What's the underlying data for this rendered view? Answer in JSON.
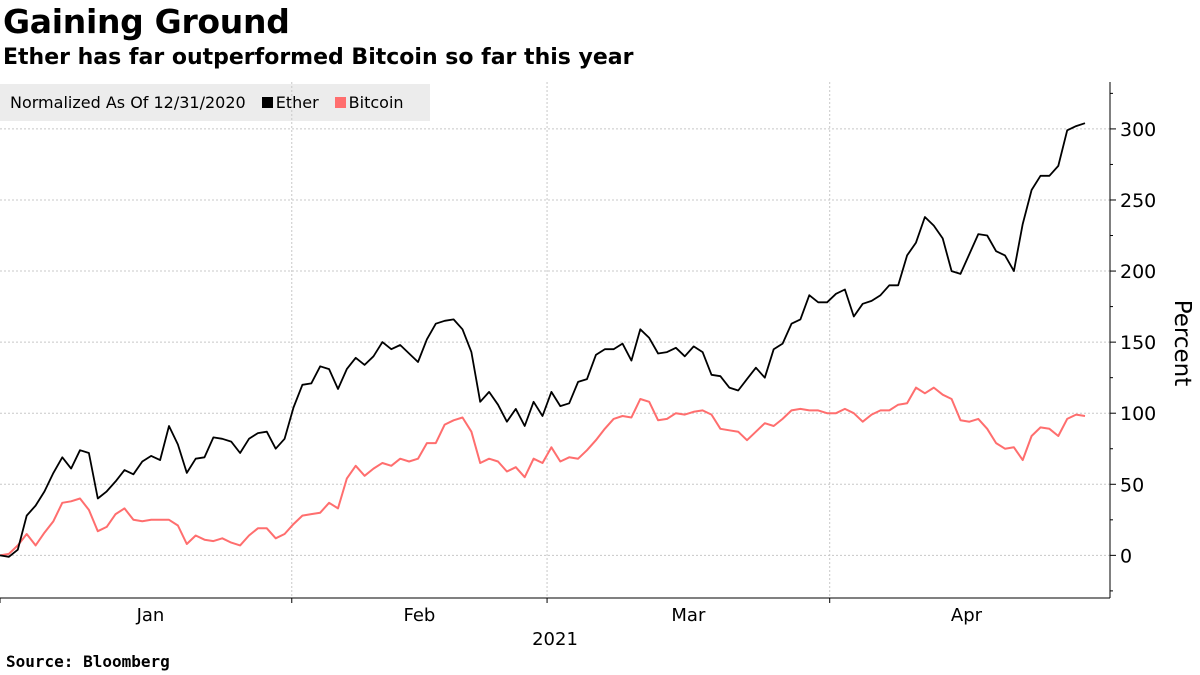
{
  "header": {
    "title": "Gaining Ground",
    "subtitle": "Ether has far outperformed Bitcoin so far this year"
  },
  "legend": {
    "note": "Normalized As Of 12/31/2020",
    "items": [
      {
        "label": "Ether",
        "color": "#000000"
      },
      {
        "label": "Bitcoin",
        "color": "#ff6e6e"
      }
    ]
  },
  "footer": {
    "source": "Source: Bloomberg"
  },
  "chart_data": {
    "type": "line",
    "title": "Gaining Ground",
    "subtitle": "Ether has far outperformed Bitcoin so far this year",
    "ylabel": "Percent",
    "xlabel": "2021",
    "ylim": [
      -30,
      333
    ],
    "yticks": [
      0,
      50,
      100,
      150,
      200,
      250,
      300
    ],
    "x_tick_labels": [
      "Jan",
      "Feb",
      "Mar",
      "Apr"
    ],
    "x_year_label": "2021",
    "grid": true,
    "legend_position": "top-left",
    "x_start": "2020-12-31",
    "x_end": "2021-04-29",
    "series": [
      {
        "name": "Ether",
        "color": "#000000",
        "values": [
          0,
          -1,
          4,
          28,
          35,
          45,
          58,
          69,
          61,
          74,
          72,
          40,
          45,
          52,
          60,
          57,
          66,
          70,
          67,
          91,
          78,
          58,
          68,
          69,
          83,
          82,
          80,
          72,
          82,
          86,
          87,
          75,
          82,
          104,
          120,
          121,
          133,
          131,
          117,
          131,
          139,
          134,
          140,
          150,
          145,
          148,
          142,
          136,
          152,
          163,
          165,
          166,
          159,
          143,
          108,
          115,
          106,
          94,
          103,
          91,
          108,
          98,
          115,
          105,
          107,
          122,
          124,
          141,
          145,
          145,
          149,
          137,
          159,
          153,
          142,
          143,
          146,
          140,
          147,
          143,
          127,
          126,
          118,
          116,
          124,
          132,
          125,
          145,
          149,
          163,
          166,
          183,
          178,
          178,
          184,
          187,
          168,
          177,
          179,
          183,
          190,
          190,
          211,
          220,
          238,
          232,
          223,
          200,
          198,
          212,
          226,
          225,
          214,
          211,
          200,
          233,
          257,
          267,
          267,
          274,
          299,
          302,
          304
        ]
      },
      {
        "name": "Bitcoin",
        "color": "#ff6e6e",
        "values": [
          0,
          1,
          7,
          15,
          7,
          16,
          24,
          37,
          38,
          40,
          32,
          17,
          20,
          29,
          33,
          25,
          24,
          25,
          25,
          25,
          21,
          8,
          14,
          11,
          10,
          12,
          9,
          7,
          14,
          19,
          19,
          12,
          15,
          22,
          28,
          29,
          30,
          37,
          33,
          54,
          63,
          56,
          61,
          65,
          63,
          68,
          66,
          68,
          79,
          79,
          92,
          95,
          97,
          87,
          65,
          68,
          66,
          59,
          62,
          55,
          68,
          65,
          76,
          66,
          69,
          68,
          74,
          81,
          89,
          96,
          98,
          97,
          110,
          108,
          95,
          96,
          100,
          99,
          101,
          102,
          99,
          89,
          88,
          87,
          81,
          87,
          93,
          91,
          96,
          102,
          103,
          102,
          102,
          100,
          100,
          103,
          100,
          94,
          99,
          102,
          102,
          106,
          107,
          118,
          114,
          118,
          113,
          110,
          95,
          94,
          96,
          89,
          79,
          75,
          76,
          67,
          84,
          90,
          89,
          84,
          96,
          99,
          98
        ]
      }
    ]
  }
}
